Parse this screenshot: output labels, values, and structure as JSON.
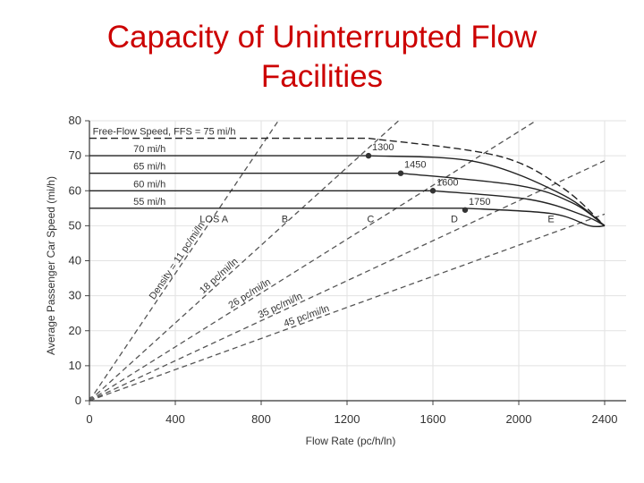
{
  "slide": {
    "title_line1": "Capacity of Uninterrupted Flow",
    "title_line2": "Facilities"
  },
  "chart_data": {
    "type": "line",
    "xlabel": "Flow Rate (pc/h/ln)",
    "ylabel": "Average Passenger Car Speed (mi/h)",
    "xlim": [
      0,
      2500
    ],
    "ylim": [
      0,
      80
    ],
    "xticks": [
      "0",
      "400",
      "800",
      "1200",
      "1600",
      "2000",
      "2400"
    ],
    "yticks": [
      "0",
      "10",
      "20",
      "30",
      "40",
      "50",
      "60",
      "70",
      "80"
    ],
    "grid": true,
    "ffs_label": "Free-Flow Speed, FFS = 75 mi/h",
    "series": [
      {
        "name": "75 mi/h",
        "points": [
          [
            0,
            75
          ],
          [
            1300,
            75
          ],
          [
            1900,
            70
          ],
          [
            2200,
            61
          ],
          [
            2400,
            50
          ]
        ]
      },
      {
        "name": "70 mi/h",
        "points": [
          [
            0,
            70
          ],
          [
            1300,
            70
          ],
          [
            1800,
            68.3
          ],
          [
            2200,
            59
          ],
          [
            2400,
            50
          ]
        ]
      },
      {
        "name": "65 mi/h",
        "points": [
          [
            0,
            65
          ],
          [
            1450,
            65
          ],
          [
            2000,
            61.5
          ],
          [
            2250,
            56.5
          ],
          [
            2400,
            50
          ]
        ]
      },
      {
        "name": "60 mi/h",
        "points": [
          [
            0,
            60
          ],
          [
            1600,
            60
          ],
          [
            2050,
            57.5
          ],
          [
            2300,
            53
          ],
          [
            2400,
            50
          ]
        ]
      },
      {
        "name": "55 mi/h",
        "points": [
          [
            0,
            55
          ],
          [
            1750,
            55
          ],
          [
            2150,
            53.5
          ],
          [
            2330,
            50
          ],
          [
            2400,
            50
          ]
        ]
      }
    ],
    "capacity_points": [
      {
        "label": "1300",
        "x": 1300,
        "y": 70
      },
      {
        "label": "1450",
        "x": 1450,
        "y": 65
      },
      {
        "label": "1600",
        "x": 1600,
        "y": 60
      },
      {
        "label": "1750",
        "x": 1750,
        "y": 54.5
      }
    ],
    "density_lines": [
      {
        "label": "Density = 11 pc/mi/ln",
        "density": 11
      },
      {
        "label": "18 pc/mi/ln",
        "density": 18
      },
      {
        "label": "26 pc/mi/ln",
        "density": 26
      },
      {
        "label": "35 pc/mi/ln",
        "density": 35
      },
      {
        "label": "45 pc/mi/ln",
        "density": 45
      }
    ],
    "los_labels": [
      {
        "label": "LOS A",
        "x": 580,
        "y": 51
      },
      {
        "label": "B",
        "x": 910,
        "y": 51
      },
      {
        "label": "C",
        "x": 1310,
        "y": 51
      },
      {
        "label": "D",
        "x": 1700,
        "y": 51
      },
      {
        "label": "E",
        "x": 2150,
        "y": 51
      }
    ]
  }
}
